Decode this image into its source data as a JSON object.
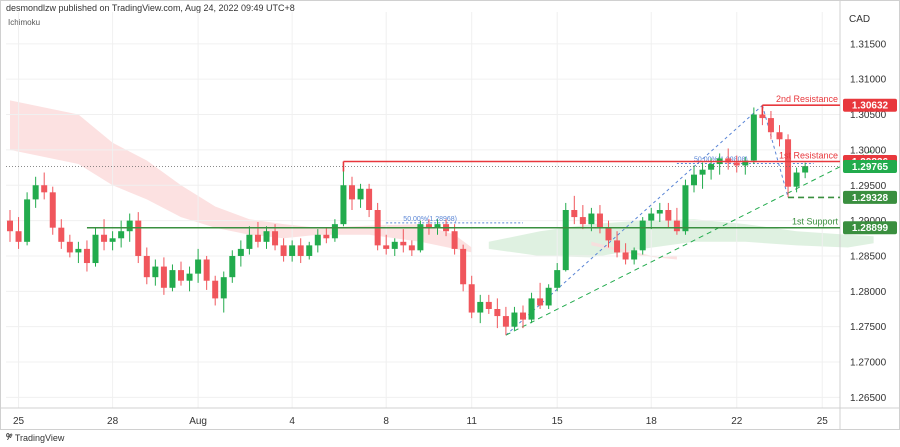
{
  "header": {
    "published": "desmondlzw published on TradingView.com, Aug 24, 2022 09:49 UTC+8",
    "indicator": "Ichimoku",
    "currency": "CAD"
  },
  "branding": {
    "logo": "tv-logo-icon",
    "name": "TradingView"
  },
  "colors": {
    "up": "#22ab4d",
    "down": "#f0565c",
    "resistance": "#e8383d",
    "support": "#3a8f3f",
    "cloud_bear": "#fbdcdc",
    "cloud_bull": "#d9efdc",
    "fib": "#5b86d6"
  },
  "chart_data": {
    "type": "candlestick",
    "title": "",
    "x_tick_labels": [
      "25",
      "28",
      "Aug",
      "4",
      "8",
      "11",
      "15",
      "18",
      "22",
      "25"
    ],
    "x_tick_bars": [
      1,
      12,
      22,
      33,
      44,
      54,
      64,
      75,
      85,
      95
    ],
    "y_ticks": [
      1.265,
      1.27,
      1.275,
      1.28,
      1.285,
      1.29,
      1.295,
      1.3,
      1.305,
      1.31,
      1.315
    ],
    "y_tick_labels": [
      "1.26500",
      "1.27000",
      "1.27500",
      "1.28000",
      "1.28500",
      "1.29000",
      "1.29500",
      "1.30000",
      "1.30500",
      "1.31000",
      "1.31500"
    ],
    "ylim": [
      1.2635,
      1.3195
    ],
    "candles": [
      [
        1.29,
        1.2915,
        1.287,
        1.2885
      ],
      [
        1.2885,
        1.2905,
        1.286,
        1.287
      ],
      [
        1.287,
        1.294,
        1.2865,
        1.293
      ],
      [
        1.293,
        1.2962,
        1.2918,
        1.295
      ],
      [
        1.295,
        1.2968,
        1.293,
        1.294
      ],
      [
        1.294,
        1.2948,
        1.288,
        1.289
      ],
      [
        1.289,
        1.2902,
        1.286,
        1.287
      ],
      [
        1.287,
        1.288,
        1.2848,
        1.2855
      ],
      [
        1.2855,
        1.287,
        1.284,
        1.286
      ],
      [
        1.286,
        1.2872,
        1.2828,
        1.284
      ],
      [
        1.284,
        1.289,
        1.2835,
        1.288
      ],
      [
        1.288,
        1.2902,
        1.2858,
        1.287
      ],
      [
        1.287,
        1.2885,
        1.2858,
        1.2875
      ],
      [
        1.2875,
        1.29,
        1.2862,
        1.2885
      ],
      [
        1.2885,
        1.291,
        1.287,
        1.29
      ],
      [
        1.29,
        1.2912,
        1.284,
        1.285
      ],
      [
        1.285,
        1.2862,
        1.281,
        1.282
      ],
      [
        1.282,
        1.2845,
        1.2808,
        1.2835
      ],
      [
        1.2835,
        1.2848,
        1.2795,
        1.2805
      ],
      [
        1.2805,
        1.2838,
        1.28,
        1.283
      ],
      [
        1.283,
        1.2842,
        1.2808,
        1.2815
      ],
      [
        1.2815,
        1.2835,
        1.28,
        1.2825
      ],
      [
        1.2825,
        1.286,
        1.2812,
        1.2845
      ],
      [
        1.2845,
        1.285,
        1.2802,
        1.2815
      ],
      [
        1.2815,
        1.2822,
        1.278,
        1.279
      ],
      [
        1.279,
        1.2828,
        1.277,
        1.282
      ],
      [
        1.282,
        1.2858,
        1.2812,
        1.285
      ],
      [
        1.285,
        1.2872,
        1.2835,
        1.286
      ],
      [
        1.286,
        1.2892,
        1.2852,
        1.288
      ],
      [
        1.288,
        1.2898,
        1.2862,
        1.287
      ],
      [
        1.287,
        1.2892,
        1.286,
        1.2885
      ],
      [
        1.2885,
        1.2895,
        1.2858,
        1.2865
      ],
      [
        1.2865,
        1.2875,
        1.2842,
        1.285
      ],
      [
        1.285,
        1.2872,
        1.2842,
        1.2865
      ],
      [
        1.2865,
        1.2875,
        1.284,
        1.285
      ],
      [
        1.285,
        1.287,
        1.2845,
        1.2865
      ],
      [
        1.2865,
        1.2888,
        1.2855,
        1.288
      ],
      [
        1.288,
        1.289,
        1.2868,
        1.2875
      ],
      [
        1.2875,
        1.2902,
        1.287,
        1.2895
      ],
      [
        1.2895,
        1.298,
        1.2892,
        1.295
      ],
      [
        1.295,
        1.2962,
        1.2915,
        1.293
      ],
      [
        1.293,
        1.2952,
        1.2918,
        1.2945
      ],
      [
        1.2945,
        1.2952,
        1.2905,
        1.2915
      ],
      [
        1.2915,
        1.2925,
        1.2858,
        1.2865
      ],
      [
        1.2865,
        1.288,
        1.2852,
        1.286
      ],
      [
        1.286,
        1.2875,
        1.285,
        1.287
      ],
      [
        1.287,
        1.2888,
        1.2855,
        1.2865
      ],
      [
        1.2865,
        1.2872,
        1.285,
        1.2858
      ],
      [
        1.2858,
        1.29,
        1.2855,
        1.2895
      ],
      [
        1.2895,
        1.2902,
        1.288,
        1.289
      ],
      [
        1.289,
        1.2902,
        1.288,
        1.2895
      ],
      [
        1.2895,
        1.2902,
        1.2878,
        1.2885
      ],
      [
        1.2885,
        1.2895,
        1.2852,
        1.286
      ],
      [
        1.286,
        1.2866,
        1.28,
        1.281
      ],
      [
        1.281,
        1.2822,
        1.2762,
        1.277
      ],
      [
        1.277,
        1.2795,
        1.2755,
        1.2785
      ],
      [
        1.2785,
        1.2795,
        1.2768,
        1.2775
      ],
      [
        1.2775,
        1.279,
        1.2748,
        1.2765
      ],
      [
        1.2765,
        1.2778,
        1.2738,
        1.275
      ],
      [
        1.275,
        1.2778,
        1.2745,
        1.277
      ],
      [
        1.277,
        1.278,
        1.2748,
        1.276
      ],
      [
        1.276,
        1.2798,
        1.2755,
        1.279
      ],
      [
        1.279,
        1.2812,
        1.2775,
        1.278
      ],
      [
        1.278,
        1.281,
        1.2775,
        1.2805
      ],
      [
        1.2805,
        1.284,
        1.28,
        1.283
      ],
      [
        1.283,
        1.2925,
        1.2828,
        1.2915
      ],
      [
        1.2915,
        1.2935,
        1.2895,
        1.2905
      ],
      [
        1.2905,
        1.2922,
        1.2888,
        1.2895
      ],
      [
        1.2895,
        1.2918,
        1.2885,
        1.291
      ],
      [
        1.291,
        1.2922,
        1.2882,
        1.289
      ],
      [
        1.289,
        1.29,
        1.2862,
        1.2872
      ],
      [
        1.2872,
        1.2885,
        1.2848,
        1.2855
      ],
      [
        1.2855,
        1.2868,
        1.2838,
        1.2845
      ],
      [
        1.2845,
        1.2862,
        1.2838,
        1.2858
      ],
      [
        1.2858,
        1.2905,
        1.2852,
        1.29
      ],
      [
        1.29,
        1.2918,
        1.2888,
        1.291
      ],
      [
        1.291,
        1.2925,
        1.2898,
        1.2915
      ],
      [
        1.2915,
        1.2925,
        1.289,
        1.29
      ],
      [
        1.29,
        1.2918,
        1.288,
        1.2885
      ],
      [
        1.2885,
        1.2958,
        1.288,
        1.295
      ],
      [
        1.295,
        1.2978,
        1.294,
        1.2965
      ],
      [
        1.2965,
        1.2982,
        1.2945,
        1.2972
      ],
      [
        1.2972,
        1.2988,
        1.2958,
        1.298
      ],
      [
        1.298,
        1.2995,
        1.2965,
        1.2988
      ],
      [
        1.2988,
        1.3002,
        1.2972,
        1.2982
      ],
      [
        1.2982,
        1.2992,
        1.2968,
        1.2978
      ],
      [
        1.2978,
        1.299,
        1.2965,
        1.2985
      ],
      [
        1.2985,
        1.306,
        1.298,
        1.305
      ],
      [
        1.305,
        1.3063,
        1.3035,
        1.3045
      ],
      [
        1.3045,
        1.3055,
        1.3015,
        1.3025
      ],
      [
        1.3025,
        1.3035,
        1.3005,
        1.3015
      ],
      [
        1.3015,
        1.3022,
        1.2933,
        1.2948
      ],
      [
        1.2948,
        1.2975,
        1.294,
        1.2968
      ],
      [
        1.2968,
        1.2982,
        1.296,
        1.2977
      ]
    ],
    "levels": [
      {
        "name": "2nd Resistance",
        "price": 1.30632,
        "label": "1.30632",
        "kind": "resistance",
        "start_bar": 88,
        "style": "solid"
      },
      {
        "name": "1st Resistance",
        "price": 1.29836,
        "label": "1.29836",
        "kind": "resistance",
        "start_bar": 39,
        "style": "solid"
      },
      {
        "name": "",
        "price": 1.29765,
        "label": "1.29765",
        "kind": "last",
        "start_bar": 0,
        "style": "dotted"
      },
      {
        "name": "",
        "price": 1.29328,
        "label": "1.29328",
        "kind": "support",
        "start_bar": 91,
        "style": "dashed"
      },
      {
        "name": "1st Support",
        "price": 1.28899,
        "label": "1.28899",
        "kind": "support",
        "start_bar": 9,
        "style": "solid"
      }
    ],
    "fib_labels": [
      {
        "text": "50.00%(1.28968)",
        "bar": 46,
        "price": 1.28968
      },
      {
        "text": "50.00%(1.29808)",
        "bar": 80,
        "price": 1.29808
      }
    ],
    "fib_zigzag": [
      [
        58,
        1.2738
      ],
      [
        88,
        1.3063
      ],
      [
        91,
        1.2933
      ]
    ],
    "trendline": [
      [
        58,
        1.2738
      ],
      [
        101,
        1.3
      ]
    ],
    "cloud_bear": [
      [
        0,
        1.307
      ],
      [
        8,
        1.305
      ],
      [
        12,
        1.301
      ],
      [
        16,
        1.2985
      ],
      [
        20,
        1.295
      ],
      [
        24,
        1.292
      ],
      [
        28,
        1.2902
      ],
      [
        32,
        1.2895
      ],
      [
        36,
        1.289
      ],
      [
        42,
        1.2893
      ],
      [
        48,
        1.2895
      ],
      [
        52,
        1.288
      ],
      [
        54,
        1.2862
      ],
      [
        54,
        1.2855
      ],
      [
        52,
        1.286
      ],
      [
        48,
        1.287
      ],
      [
        42,
        1.288
      ],
      [
        36,
        1.288
      ],
      [
        32,
        1.2875
      ],
      [
        28,
        1.288
      ],
      [
        24,
        1.289
      ],
      [
        20,
        1.2905
      ],
      [
        16,
        1.293
      ],
      [
        12,
        1.295
      ],
      [
        8,
        1.298
      ],
      [
        0,
        1.3
      ]
    ],
    "cloud_bull": [
      [
        56,
        1.287
      ],
      [
        62,
        1.2885
      ],
      [
        68,
        1.2895
      ],
      [
        74,
        1.29
      ],
      [
        80,
        1.2902
      ],
      [
        86,
        1.2895
      ],
      [
        92,
        1.2885
      ],
      [
        98,
        1.288
      ],
      [
        101,
        1.2878
      ],
      [
        101,
        1.2868
      ],
      [
        98,
        1.2862
      ],
      [
        92,
        1.2865
      ],
      [
        86,
        1.287
      ],
      [
        80,
        1.287
      ],
      [
        74,
        1.286
      ],
      [
        68,
        1.2848
      ],
      [
        62,
        1.285
      ],
      [
        56,
        1.286
      ]
    ],
    "cloud_bear_right": [
      [
        68,
        1.287
      ],
      [
        72,
        1.2858
      ],
      [
        76,
        1.2848
      ],
      [
        78,
        1.285
      ],
      [
        78,
        1.2845
      ],
      [
        74,
        1.285
      ],
      [
        70,
        1.286
      ],
      [
        68,
        1.2865
      ]
    ]
  }
}
